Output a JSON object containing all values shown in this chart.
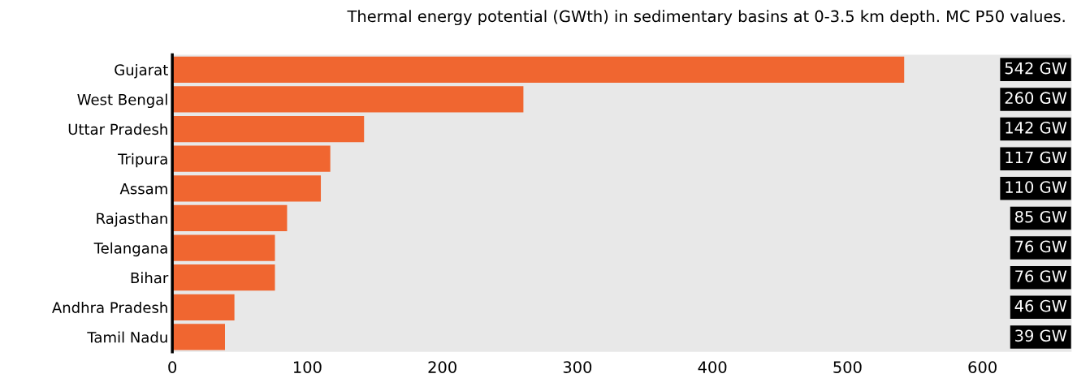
{
  "chart_data": {
    "type": "bar",
    "orientation": "horizontal",
    "title": "Thermal energy potential (GWth) in sedimentary basins at 0-3.5 km depth. MC P50 values.",
    "categories": [
      "Gujarat",
      "West Bengal",
      "Uttar Pradesh",
      "Tripura",
      "Assam",
      "Rajasthan",
      "Telangana",
      "Bihar",
      "Andhra Pradesh",
      "Tamil Nadu"
    ],
    "values": [
      542,
      260,
      142,
      117,
      110,
      85,
      76,
      76,
      46,
      39
    ],
    "value_labels": [
      "542 GW",
      "260 GW",
      "142 GW",
      "117 GW",
      "110 GW",
      "85 GW",
      "76 GW",
      "76 GW",
      "46 GW",
      "39 GW"
    ],
    "color": "#f06630",
    "xlim": [
      0,
      666
    ],
    "xticks": [
      0,
      100,
      200,
      300,
      400,
      500,
      600
    ],
    "grid": false,
    "legend": false
  }
}
